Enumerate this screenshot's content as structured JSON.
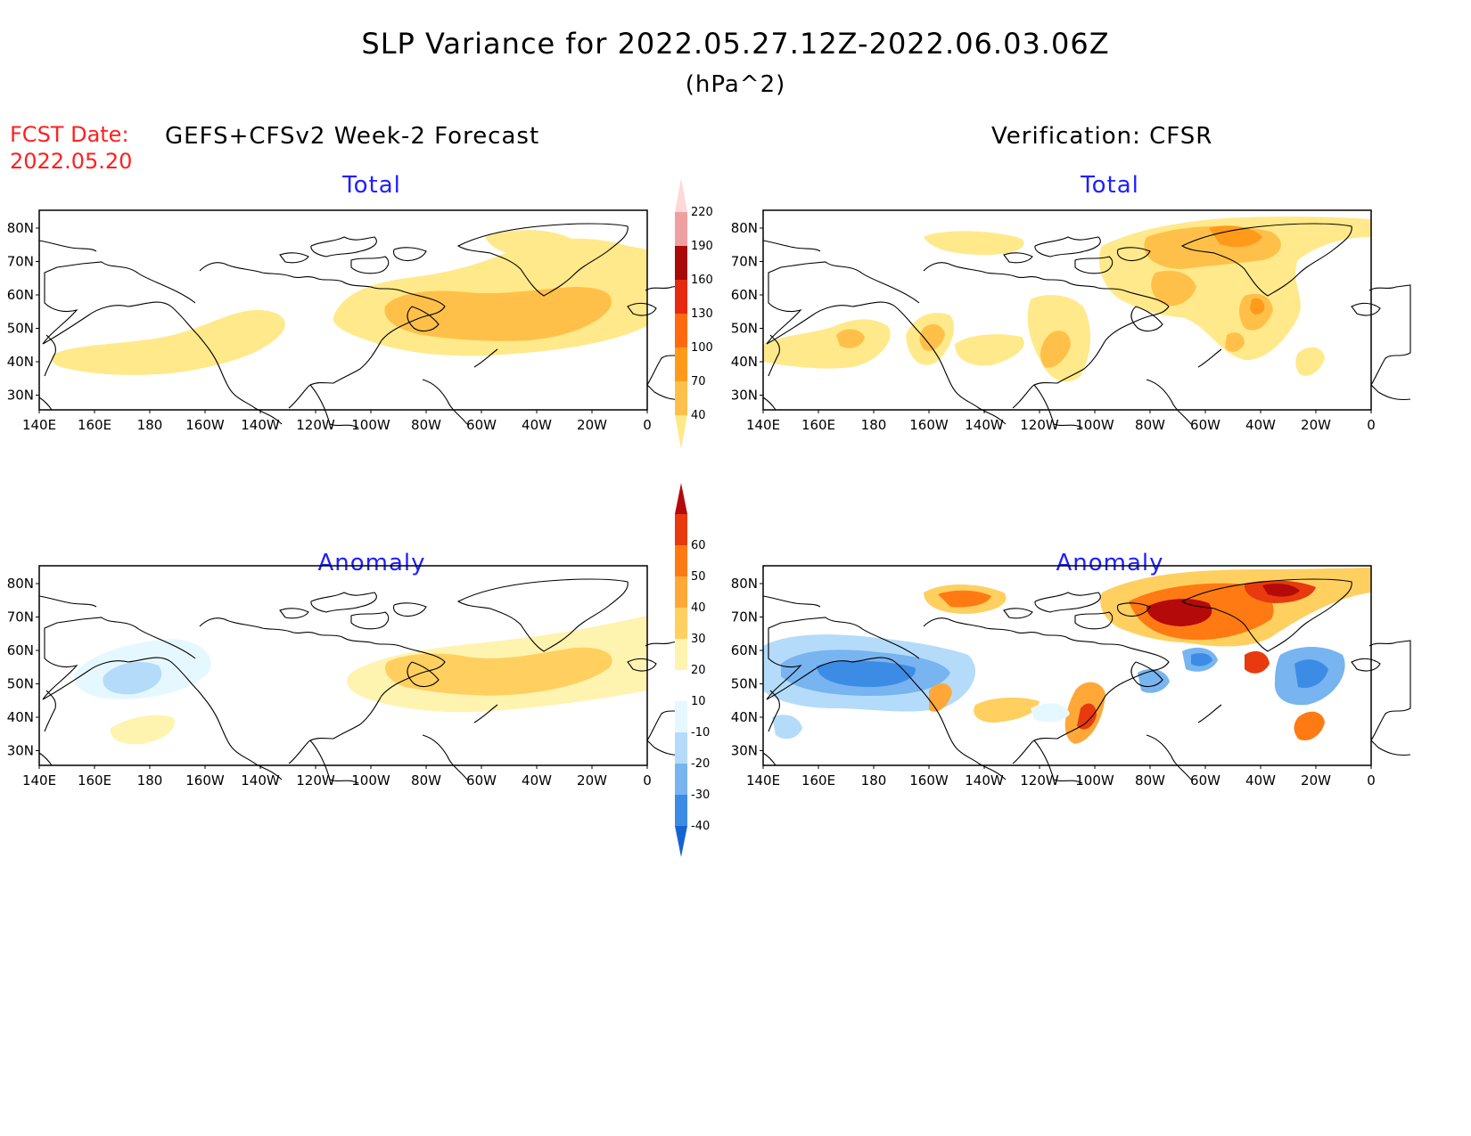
{
  "title": "SLP Variance for 2022.05.27.12Z-2022.06.03.06Z",
  "units": "(hPa^2)",
  "forecast_date_label": "FCST Date:",
  "forecast_date": "2022.05.20",
  "left_header": "GEFS+CFSv2 Week-2 Forecast",
  "right_header": "Verification: CFSR",
  "panels": {
    "forecast_total": {
      "title": "Total"
    },
    "verification_total": {
      "title": "Total"
    },
    "forecast_anomaly": {
      "title": "Anomaly"
    },
    "verification_anomaly": {
      "title": "Anomaly"
    }
  },
  "axes": {
    "lat_labels": [
      "80N",
      "70N",
      "60N",
      "50N",
      "40N",
      "30N"
    ],
    "lon_labels": [
      "140E",
      "160E",
      "180",
      "160W",
      "140W",
      "120W",
      "100W",
      "80W",
      "60W",
      "40W",
      "20W",
      "0"
    ]
  },
  "colorbars": {
    "total": {
      "levels": [
        "40",
        "70",
        "100",
        "130",
        "160",
        "190",
        "220"
      ],
      "colors": [
        "#ffe98a",
        "#ffc04a",
        "#ff9a1a",
        "#ff6a10",
        "#e52a10",
        "#a80a0a",
        "#f0a0a0",
        "#ffd8d8"
      ]
    },
    "anomaly": {
      "levels": [
        "-40",
        "-30",
        "-20",
        "-10",
        "10",
        "20",
        "30",
        "40",
        "50",
        "60"
      ],
      "colors": [
        "#1463d2",
        "#3c8ce6",
        "#78b4f0",
        "#b4dcfa",
        "#e6f8ff",
        "#ffffff",
        "#fff3b0",
        "#ffd060",
        "#ffa838",
        "#ff7a12",
        "#e83a0e",
        "#b40a0a"
      ]
    }
  }
}
